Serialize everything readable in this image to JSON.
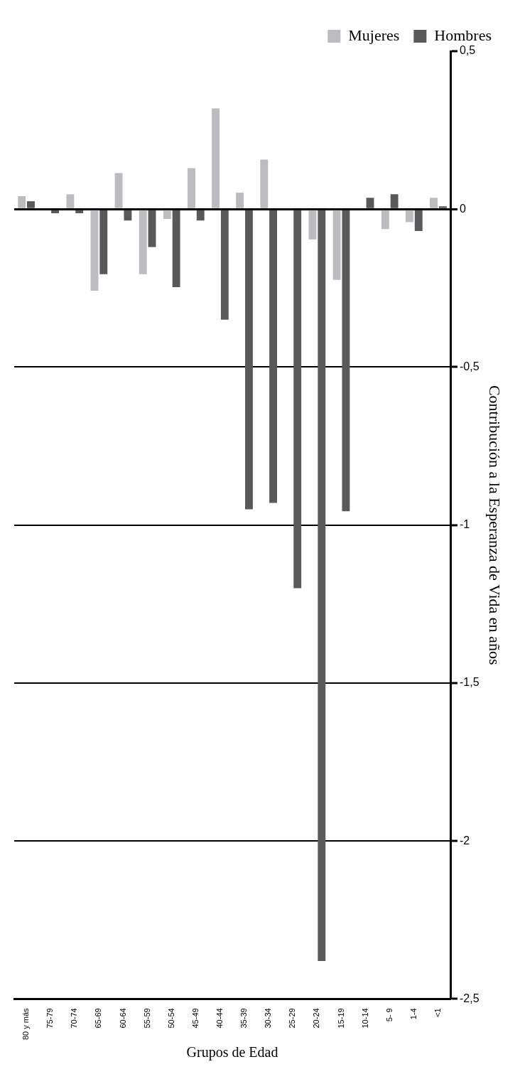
{
  "chart_data": {
    "type": "bar",
    "xlabel": "Grupos de Edad",
    "ylabel": "Contribución a la Esperanza de Vida en años",
    "categories": [
      "80 y más",
      "75-79",
      "70-74",
      "65-69",
      "60-64",
      "55-59",
      "50-54",
      "45-49",
      "40-44",
      "35-39",
      "30-34",
      "25-29",
      "20-24",
      "15-19",
      "10-14",
      "5- 9",
      "1-4",
      "<1"
    ],
    "series": [
      {
        "name": "Mujeres",
        "color": "#bbbcc0",
        "values": [
          0.041,
          0,
          0.047,
          -0.258,
          0.114,
          -0.206,
          -0.031,
          0.13,
          0.319,
          0.052,
          0.157,
          0,
          -0.096,
          -0.224,
          0,
          -0.063,
          -0.041,
          0.036
        ]
      },
      {
        "name": "Hombres",
        "color": "#58595b",
        "values": [
          0.025,
          -0.013,
          -0.013,
          -0.206,
          -0.036,
          -0.12,
          -0.247,
          -0.036,
          -0.35,
          -0.95,
          -0.93,
          -1.2,
          -2.38,
          -0.956,
          0.036,
          0.047,
          -0.069,
          0.009
        ]
      }
    ],
    "ylim": [
      -2.5,
      0.5
    ],
    "yticks": [
      {
        "value": -2.5,
        "label": "-2,5"
      },
      -2,
      {
        "value": -1.5,
        "label": "-1,5"
      },
      -1,
      {
        "value": -0.5,
        "label": "-0,5"
      },
      0,
      {
        "value": 0.5,
        "label": "0,5"
      }
    ],
    "grid": "y",
    "legend": "top right"
  }
}
